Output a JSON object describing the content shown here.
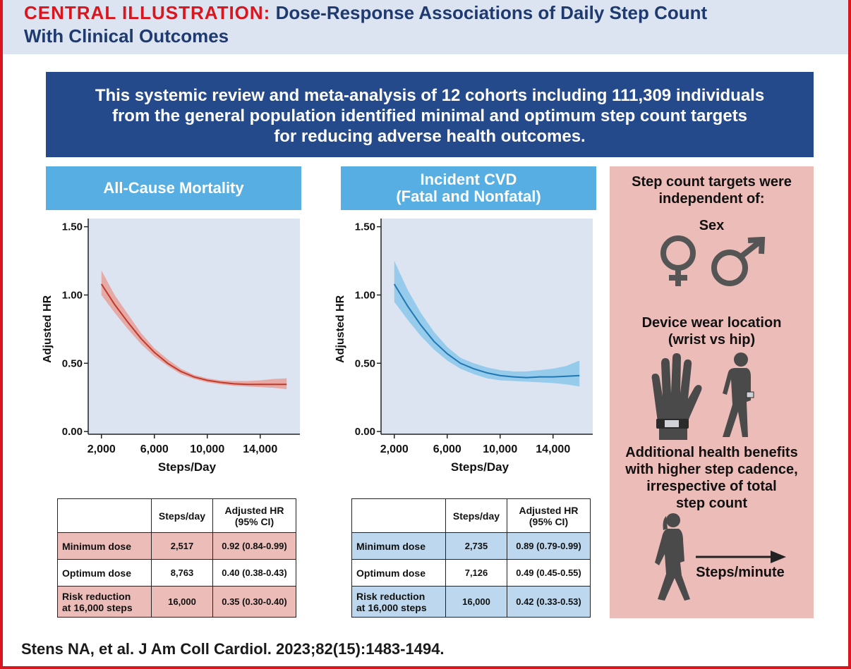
{
  "header": {
    "title_lead": "CENTRAL ILLUSTRATION:",
    "title_rest": "Dose-Response Associations of Daily Step Count",
    "title_line2": "With Clinical Outcomes"
  },
  "summary": {
    "line1": "This systemic review and meta-analysis of 12 cohorts including 111,309 individuals",
    "line2": "from the general population identified minimal and optimum step count targets",
    "line3": "for reducing adverse health outcomes."
  },
  "panels": {
    "mortality_title": "All-Cause Mortality",
    "cvd_title_line1": "Incident CVD",
    "cvd_title_line2": "(Fatal and Nonfatal)"
  },
  "colors": {
    "red_curve": "#c0392b",
    "red_band": "#e8958c",
    "blue_curve": "#1f78b4",
    "blue_band": "#7fc3e8",
    "plot_bg": "#dce4f2"
  },
  "chart_data": [
    {
      "type": "line",
      "title": "All-Cause Mortality",
      "xlabel": "Steps/Day",
      "ylabel": "Adjusted HR",
      "xlim": [
        1000,
        17000
      ],
      "ylim": [
        0,
        1.5
      ],
      "xticks": [
        "2,000",
        "6,000",
        "10,000",
        "14,000"
      ],
      "xtick_values": [
        2000,
        6000,
        10000,
        14000
      ],
      "yticks": [
        "0.00",
        "0.50",
        "1.00",
        "1.50"
      ],
      "ytick_values": [
        0,
        0.5,
        1.0,
        1.5
      ],
      "series": [
        {
          "name": "Adjusted HR",
          "x": [
            2000,
            3000,
            4000,
            5000,
            6000,
            7000,
            8000,
            9000,
            10000,
            11000,
            12000,
            13000,
            14000,
            15000,
            16000
          ],
          "y": [
            1.08,
            0.93,
            0.8,
            0.68,
            0.58,
            0.5,
            0.44,
            0.4,
            0.375,
            0.36,
            0.35,
            0.345,
            0.345,
            0.345,
            0.345
          ],
          "lower": [
            1.0,
            0.87,
            0.75,
            0.64,
            0.55,
            0.48,
            0.42,
            0.385,
            0.36,
            0.345,
            0.335,
            0.33,
            0.325,
            0.32,
            0.31
          ],
          "upper": [
            1.18,
            1.0,
            0.86,
            0.72,
            0.61,
            0.53,
            0.46,
            0.415,
            0.39,
            0.375,
            0.37,
            0.37,
            0.375,
            0.385,
            0.39
          ]
        }
      ]
    },
    {
      "type": "line",
      "title": "Incident CVD (Fatal and Nonfatal)",
      "xlabel": "Steps/Day",
      "ylabel": "Adjusted HR",
      "xlim": [
        1000,
        17000
      ],
      "ylim": [
        0,
        1.5
      ],
      "xticks": [
        "2,000",
        "6,000",
        "10,000",
        "14,000"
      ],
      "xtick_values": [
        2000,
        6000,
        10000,
        14000
      ],
      "yticks": [
        "0.00",
        "0.50",
        "1.00",
        "1.50"
      ],
      "ytick_values": [
        0,
        0.5,
        1.0,
        1.5
      ],
      "series": [
        {
          "name": "Adjusted HR",
          "x": [
            2000,
            3000,
            4000,
            5000,
            6000,
            7000,
            8000,
            9000,
            10000,
            11000,
            12000,
            13000,
            14000,
            15000,
            16000
          ],
          "y": [
            1.08,
            0.92,
            0.78,
            0.66,
            0.57,
            0.5,
            0.46,
            0.43,
            0.41,
            0.4,
            0.395,
            0.4,
            0.4,
            0.405,
            0.41
          ],
          "lower": [
            0.95,
            0.82,
            0.7,
            0.6,
            0.52,
            0.46,
            0.42,
            0.39,
            0.375,
            0.37,
            0.365,
            0.36,
            0.355,
            0.345,
            0.33
          ],
          "upper": [
            1.25,
            1.04,
            0.87,
            0.73,
            0.62,
            0.54,
            0.5,
            0.47,
            0.45,
            0.44,
            0.44,
            0.45,
            0.46,
            0.48,
            0.52
          ]
        }
      ]
    }
  ],
  "table_mortality": {
    "col_steps": "Steps/day",
    "col_hr_line1": "Adjusted HR",
    "col_hr_line2": "(95% CI)",
    "rows": [
      {
        "label": "Minimum dose",
        "steps": "2,517",
        "hr": "0.92 (0.84-0.99)"
      },
      {
        "label": "Optimum dose",
        "steps": "8,763",
        "hr": "0.40 (0.38-0.43)"
      },
      {
        "label_line1": "Risk reduction",
        "label_line2": "at 16,000 steps",
        "steps": "16,000",
        "hr": "0.35 (0.30-0.40)"
      }
    ]
  },
  "table_cvd": {
    "col_steps": "Steps/day",
    "col_hr_line1": "Adjusted HR",
    "col_hr_line2": "(95% CI)",
    "rows": [
      {
        "label": "Minimum dose",
        "steps": "2,735",
        "hr": "0.89 (0.79-0.99)"
      },
      {
        "label": "Optimum dose",
        "steps": "7,126",
        "hr": "0.49 (0.45-0.55)"
      },
      {
        "label_line1": "Risk reduction",
        "label_line2": "at 16,000 steps",
        "steps": "16,000",
        "hr": "0.42 (0.33-0.53)"
      }
    ]
  },
  "sidebar": {
    "heading_line1": "Step count targets were",
    "heading_line2": "independent of:",
    "sex_label": "Sex",
    "device_line1": "Device wear location",
    "device_line2": "(wrist vs hip)",
    "benefit_line1": "Additional health benefits",
    "benefit_line2": "with higher step cadence,",
    "benefit_line3": "irrespective of total",
    "benefit_line4": "step count",
    "cadence_label": "Steps/minute"
  },
  "citation": "Stens NA, et al. J Am Coll Cardiol. 2023;82(15):1483-1494."
}
